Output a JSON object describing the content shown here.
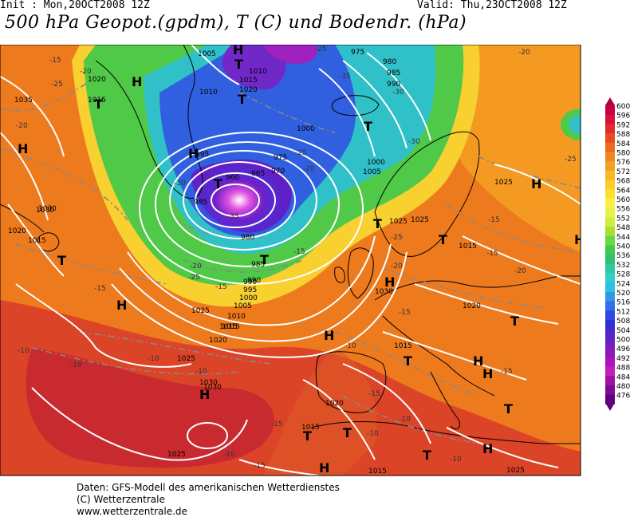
{
  "header": {
    "init": "Init : Mon,20OCT2008 12Z",
    "valid": "Valid: Thu,23OCT2008 12Z",
    "title": "500 hPa Geopot.(gpdm), T (C) und Bodendr. (hPa)"
  },
  "legend": {
    "values": [
      "600",
      "596",
      "592",
      "588",
      "584",
      "580",
      "576",
      "572",
      "568",
      "564",
      "560",
      "556",
      "552",
      "548",
      "544",
      "540",
      "536",
      "532",
      "528",
      "524",
      "520",
      "516",
      "512",
      "508",
      "504",
      "500",
      "496",
      "492",
      "488",
      "484",
      "480",
      "476"
    ],
    "colors": [
      "#c8003c",
      "#d8103a",
      "#e42a2a",
      "#e84a22",
      "#ee6a1c",
      "#f08820",
      "#f4a024",
      "#f8b828",
      "#fccc2c",
      "#fce030",
      "#f8f048",
      "#e8f04c",
      "#d2ec3c",
      "#a8e030",
      "#6cd840",
      "#40c850",
      "#30c070",
      "#30c8a0",
      "#30d0c8",
      "#30c0e0",
      "#3098e8",
      "#3070e8",
      "#3048e0",
      "#3030d0",
      "#5028c8",
      "#7020c0",
      "#9018b8",
      "#b010c0",
      "#c020b8",
      "#a010a8",
      "#800898",
      "#600080"
    ]
  },
  "map_labels": {
    "pressure": [
      "1005",
      "1010",
      "1015",
      "1020",
      "1025",
      "1030",
      "1035",
      "1000",
      "995",
      "990",
      "985",
      "980",
      "975",
      "970",
      "965",
      "960",
      "975",
      "980",
      "985",
      "990",
      "1000",
      "1005",
      "1010",
      "1015",
      "1020",
      "1025",
      "1030",
      "1015",
      "1020",
      "1025",
      "1030",
      "1015",
      "1020",
      "1015",
      "1010",
      "1005",
      "1000",
      "995",
      "990",
      "985",
      "1025",
      "1015",
      "1020",
      "1025",
      "1030",
      "1015",
      "1025",
      "1015",
      "1015",
      "1020",
      "1025",
      "1030"
    ],
    "temperature": [
      "-15",
      "-20",
      "-25",
      "-20",
      "-15",
      "-10",
      "-10",
      "-10",
      "-10",
      "-15",
      "-20",
      "-25",
      "-30",
      "-35",
      "-35",
      "-30",
      "-25",
      "-20",
      "-15",
      "-10",
      "-15",
      "-20",
      "-25",
      "-15",
      "-20",
      "-25",
      "-15",
      "-15",
      "-10",
      "-15",
      "-10",
      "-15",
      "-10",
      "-15",
      "-10",
      "-20",
      "-25",
      "-30"
    ],
    "highs": [
      "H",
      "H",
      "H",
      "H",
      "H",
      "H",
      "H",
      "H",
      "H",
      "H",
      "H",
      "H",
      "H",
      "H"
    ],
    "lows": [
      "T",
      "T",
      "T",
      "T",
      "T",
      "T",
      "T",
      "T",
      "T",
      "T",
      "T",
      "T",
      "T",
      "T",
      "T"
    ]
  },
  "footer": {
    "line1": "Daten: GFS-Modell des amerikanischen Wetterdienstes",
    "line2": "(C) Wetterzentrale",
    "line3": "www.wetterzentrale.de"
  }
}
